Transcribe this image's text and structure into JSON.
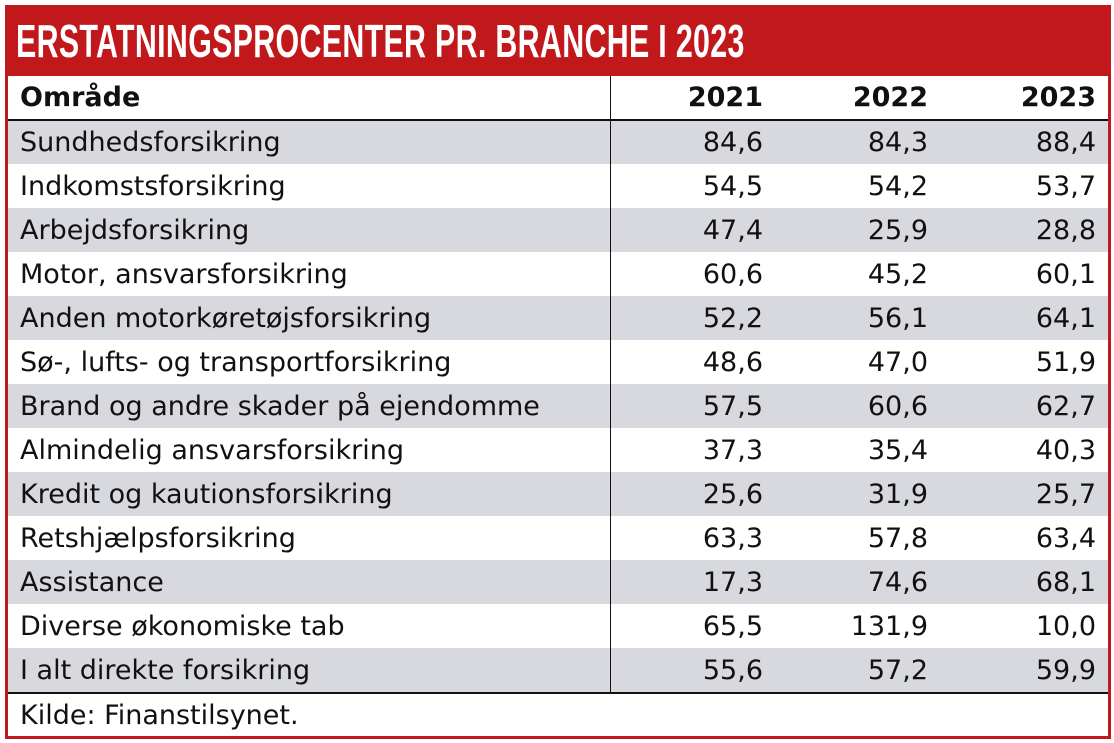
{
  "title": "ERSTATNINGSPROCENTER PR. BRANCHE I 2023",
  "colors": {
    "brand_red": "#c0181b",
    "row_gray": "#d8d9de"
  },
  "chart_data": {
    "type": "table",
    "title": "ERSTATNINGSPROCENTER PR. BRANCHE I 2023",
    "columns": [
      "Område",
      "2021",
      "2022",
      "2023"
    ],
    "rows": [
      [
        "Sundhedsforsikring",
        "84,6",
        "84,3",
        "88,4"
      ],
      [
        "Indkomstsforsikring",
        "54,5",
        "54,2",
        "53,7"
      ],
      [
        "Arbejdsforsikring",
        "47,4",
        "25,9",
        "28,8"
      ],
      [
        "Motor, ansvarsforsikring",
        "60,6",
        "45,2",
        "60,1"
      ],
      [
        "Anden motorkøretøjsforsikring",
        "52,2",
        "56,1",
        "64,1"
      ],
      [
        "Sø-, lufts- og transportforsikring",
        "48,6",
        "47,0",
        "51,9"
      ],
      [
        "Brand og andre skader på ejendomme",
        "57,5",
        "60,6",
        "62,7"
      ],
      [
        "Almindelig ansvarsforsikring",
        "37,3",
        "35,4",
        "40,3"
      ],
      [
        "Kredit og kautionsforsikring",
        "25,6",
        "31,9",
        "25,7"
      ],
      [
        "Retshjælpsforsikring",
        "63,3",
        "57,8",
        "63,4"
      ],
      [
        "Assistance",
        "17,3",
        "74,6",
        "68,1"
      ],
      [
        "Diverse økonomiske tab",
        "65,5",
        "131,9",
        "10,0"
      ],
      [
        "I alt direkte forsikring",
        "55,6",
        "57,2",
        "59,9"
      ]
    ],
    "source": "Kilde: Finanstilsynet."
  }
}
